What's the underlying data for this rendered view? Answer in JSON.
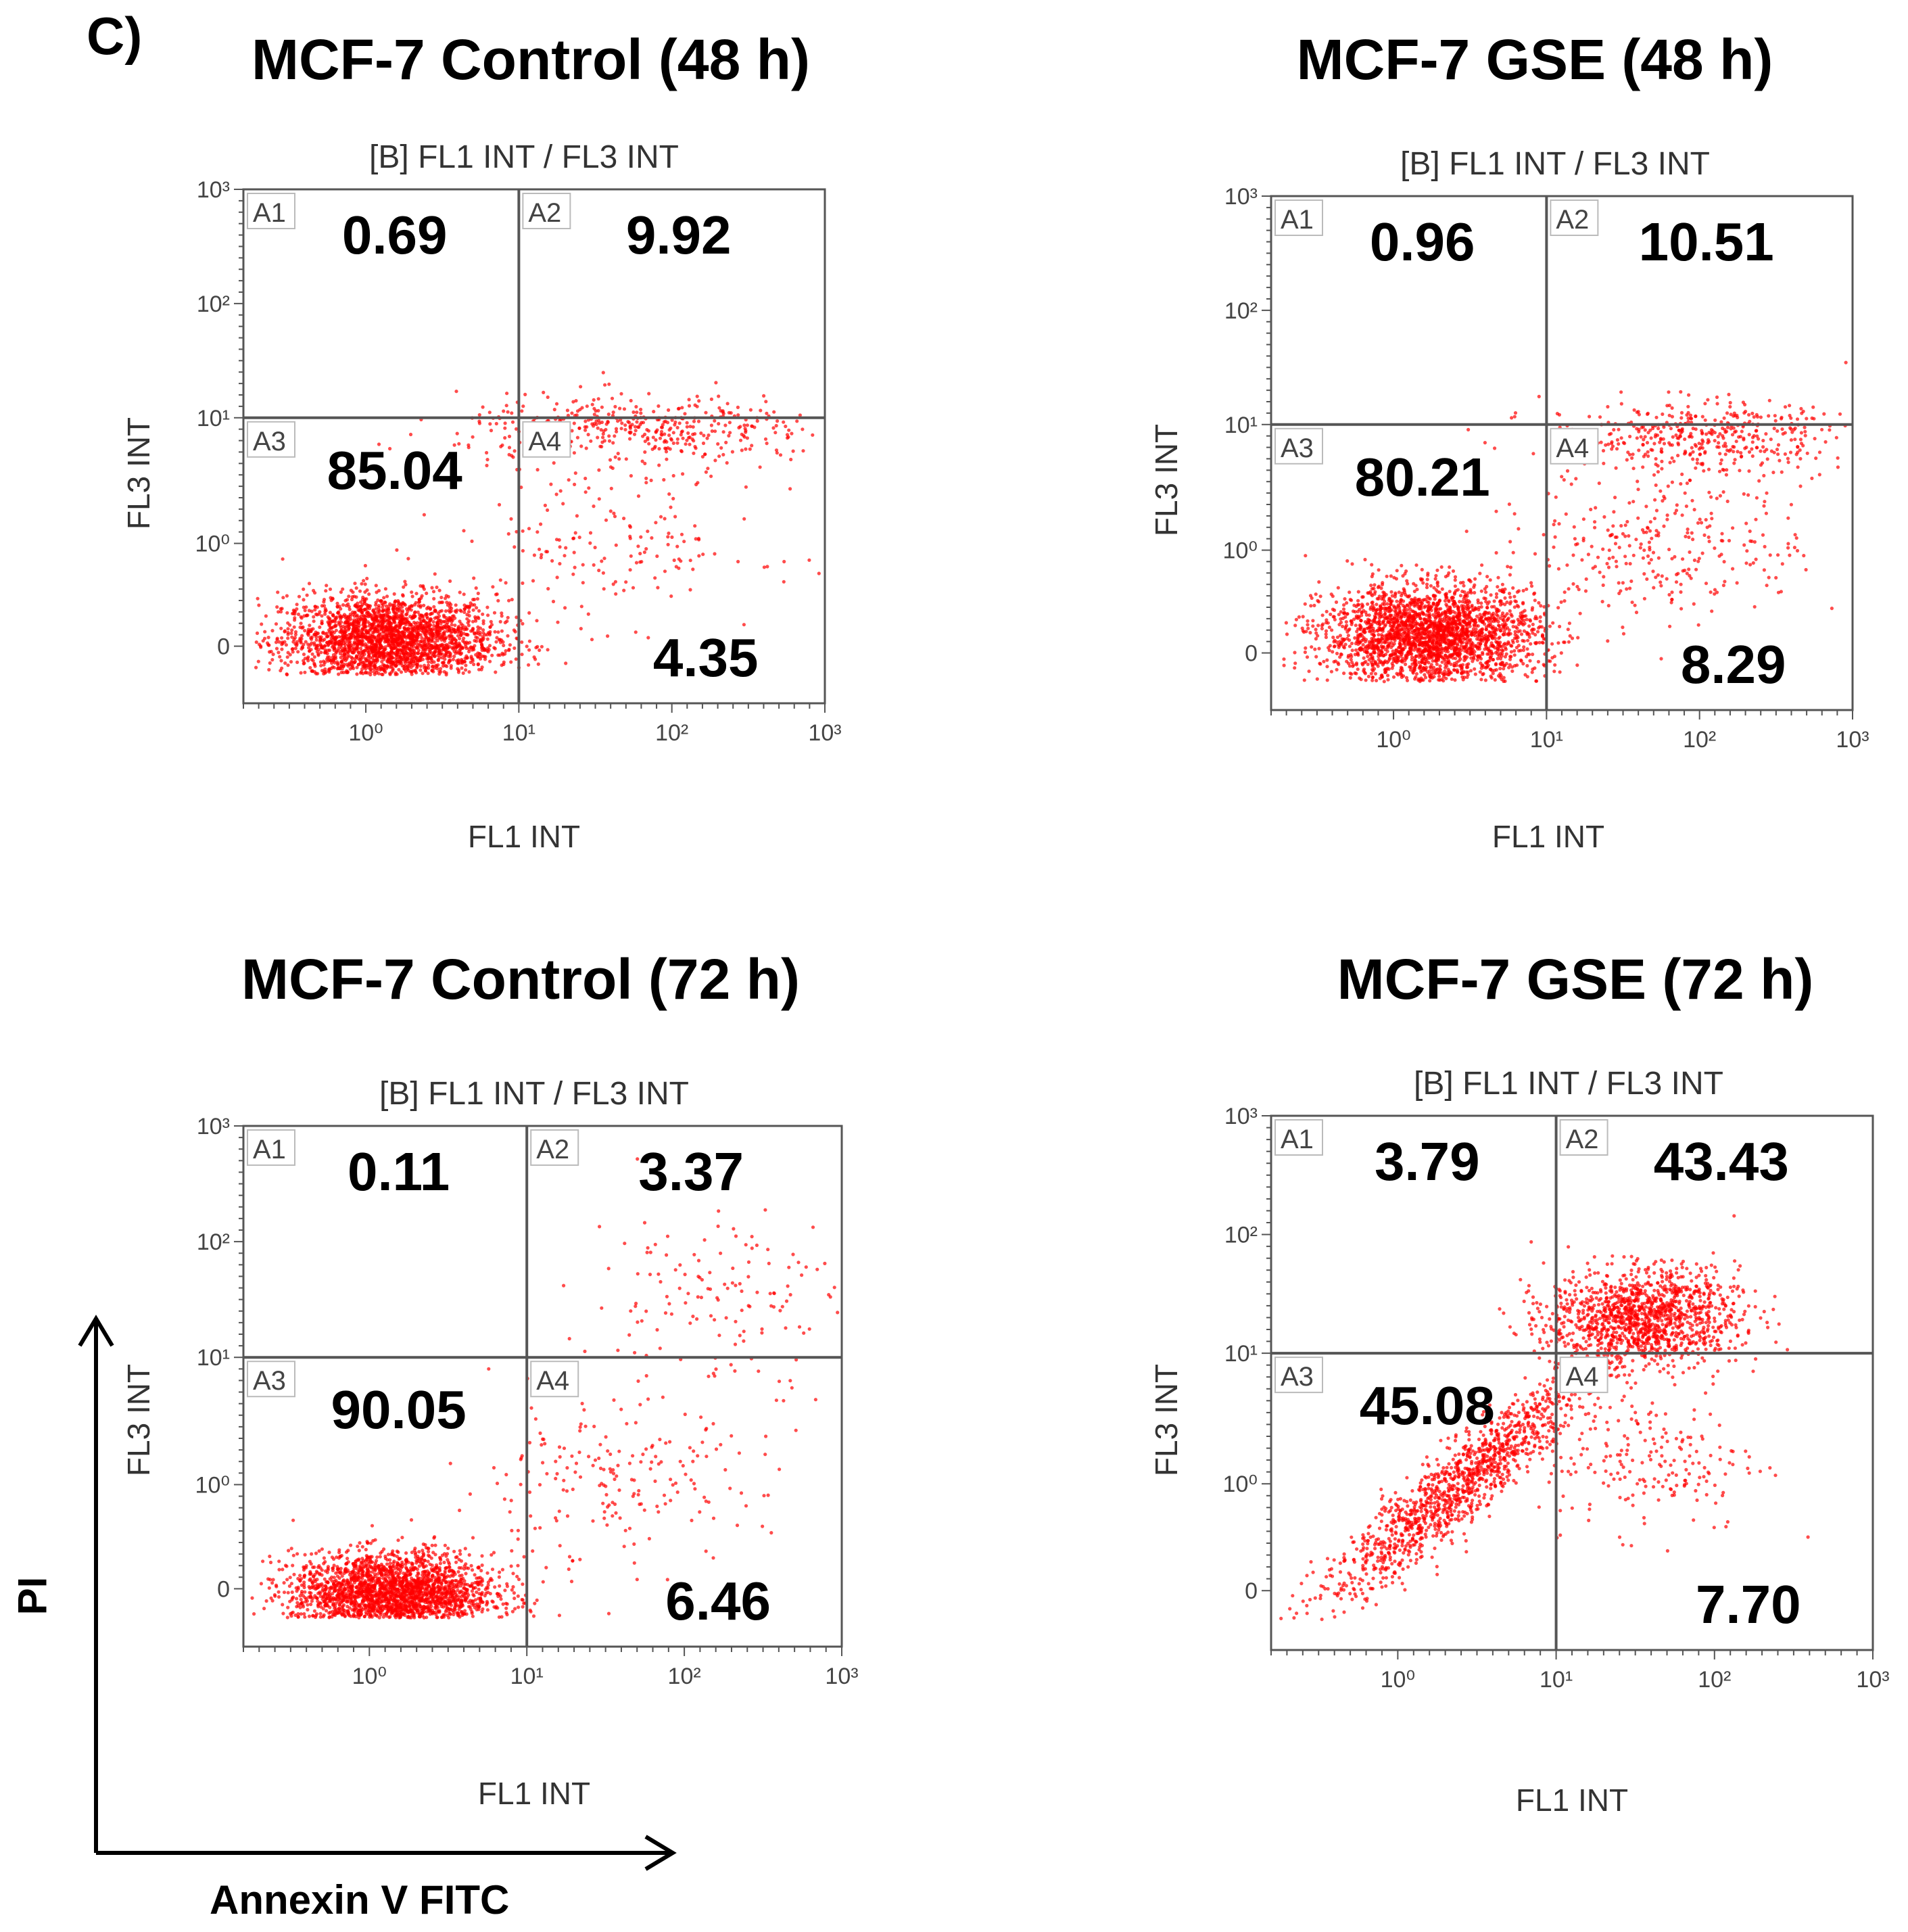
{
  "figure": {
    "panel_label": "C)",
    "global_y_label": "PI",
    "global_x_label": "Annexin V FITC",
    "point_color": "#ff0000"
  },
  "chart_data": [
    {
      "type": "scatter",
      "title": "MCF-7 Control (48 h)",
      "plot_header": "[B] FL1 INT / FL3 INT",
      "xlabel": "FL1 INT",
      "ylabel": "FL3 INT",
      "x_ticks": [
        "10⁰",
        "10¹",
        "10²",
        "10³"
      ],
      "y_ticks": [
        "0",
        "10⁰",
        "10¹",
        "10²",
        "10³"
      ],
      "quadrant_gate": {
        "x": 10,
        "y": 10
      },
      "quadrants": [
        {
          "id": "A1",
          "value": "0.69"
        },
        {
          "id": "A2",
          "value": "9.92"
        },
        {
          "id": "A3",
          "value": "85.04"
        },
        {
          "id": "A4",
          "value": "4.35"
        }
      ],
      "clusters": [
        {
          "x_log": 0.15,
          "y_scale": 0.55,
          "sx": 0.35,
          "sy": 0.2,
          "n": 2600
        },
        {
          "x_log": 1.8,
          "y_scale": 2.4,
          "sx": 0.6,
          "sy": 0.15,
          "n": 420
        },
        {
          "x_log": 1.6,
          "y_scale": 1.4,
          "sx": 0.5,
          "sy": 0.35,
          "n": 180
        }
      ]
    },
    {
      "type": "scatter",
      "title": "MCF-7 GSE (48 h)",
      "plot_header": "[B] FL1 INT / FL3 INT",
      "xlabel": "FL1 INT",
      "ylabel": "FL3 INT",
      "x_ticks": [
        "10⁰",
        "10¹",
        "10²",
        "10³"
      ],
      "y_ticks": [
        "0",
        "10⁰",
        "10¹",
        "10²",
        "10³"
      ],
      "quadrant_gate": {
        "x": 10,
        "y": 10
      },
      "quadrants": [
        {
          "id": "A1",
          "value": "0.96"
        },
        {
          "id": "A2",
          "value": "10.51"
        },
        {
          "id": "A3",
          "value": "80.21"
        },
        {
          "id": "A4",
          "value": "8.29"
        }
      ],
      "clusters": [
        {
          "x_log": 0.25,
          "y_scale": 0.65,
          "sx": 0.35,
          "sy": 0.22,
          "n": 2600
        },
        {
          "x_log": 2.0,
          "y_scale": 2.4,
          "sx": 0.5,
          "sy": 0.15,
          "n": 420
        },
        {
          "x_log": 1.8,
          "y_scale": 1.5,
          "sx": 0.45,
          "sy": 0.35,
          "n": 300
        }
      ]
    },
    {
      "type": "scatter",
      "title": "MCF-7 Control (72 h)",
      "plot_header": "[B] FL1 INT / FL3 INT",
      "xlabel": "FL1 INT",
      "ylabel": "FL3 INT",
      "x_ticks": [
        "10⁰",
        "10¹",
        "10²",
        "10³"
      ],
      "y_ticks": [
        "0",
        "10⁰",
        "10¹",
        "10²",
        "10³"
      ],
      "quadrant_gate": {
        "x": 10,
        "y": 10
      },
      "quadrants": [
        {
          "id": "A1",
          "value": "0.11"
        },
        {
          "id": "A2",
          "value": "3.37"
        },
        {
          "id": "A3",
          "value": "90.05"
        },
        {
          "id": "A4",
          "value": "6.46"
        }
      ],
      "clusters": [
        {
          "x_log": 0.15,
          "y_scale": 0.45,
          "sx": 0.32,
          "sy": 0.18,
          "n": 2600
        },
        {
          "x_log": 2.2,
          "y_scale": 3.0,
          "sx": 0.4,
          "sy": 0.4,
          "n": 140
        },
        {
          "x_log": 1.5,
          "y_scale": 1.4,
          "sx": 0.5,
          "sy": 0.35,
          "n": 200
        }
      ]
    },
    {
      "type": "scatter",
      "title": "MCF-7 GSE (72 h)",
      "plot_header": "[B] FL1 INT / FL3 INT",
      "xlabel": "FL1 INT",
      "ylabel": "FL3 INT",
      "x_ticks": [
        "10⁰",
        "10¹",
        "10²",
        "10³"
      ],
      "y_ticks": [
        "0",
        "10⁰",
        "10¹",
        "10²",
        "10³"
      ],
      "quadrant_gate": {
        "x": 10,
        "y": 10
      },
      "quadrants": [
        {
          "id": "A1",
          "value": "3.79"
        },
        {
          "id": "A2",
          "value": "43.43"
        },
        {
          "id": "A3",
          "value": "45.08"
        },
        {
          "id": "A4",
          "value": "7.70"
        }
      ],
      "clusters": [
        {
          "x_log": 0.4,
          "y_scale": 1.4,
          "sx": 0.45,
          "sy": 0.35,
          "n": 1300,
          "diagonal": true
        },
        {
          "x_log": 1.55,
          "y_scale": 2.8,
          "sx": 0.3,
          "sy": 0.2,
          "n": 1300
        },
        {
          "x_log": 1.6,
          "y_scale": 1.6,
          "sx": 0.35,
          "sy": 0.3,
          "n": 200
        }
      ]
    }
  ]
}
